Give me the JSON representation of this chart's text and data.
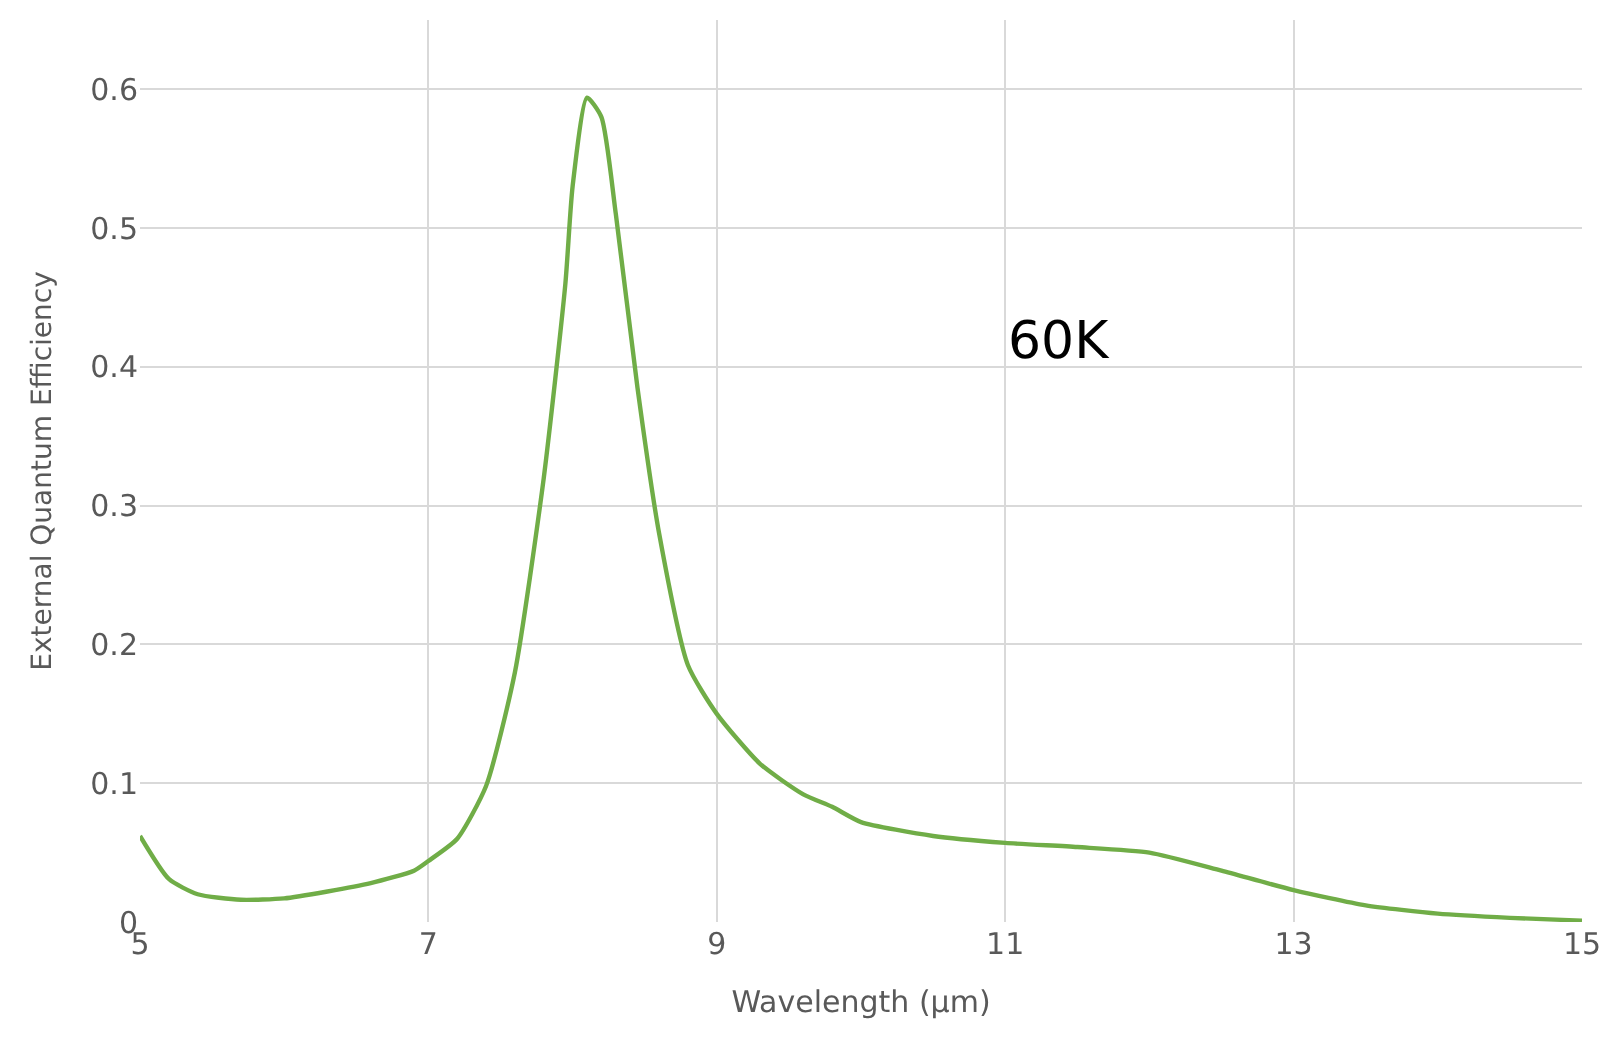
{
  "chart_data": {
    "type": "line",
    "xlabel": "Wavelength (µm)",
    "ylabel": "External Quantum Efficiency",
    "annotations": [
      "60K"
    ],
    "x": [
      5,
      5.2,
      5.4,
      5.7,
      6.0,
      6.3,
      6.6,
      6.9,
      7.0,
      7.2,
      7.4,
      7.6,
      7.8,
      7.95,
      8.0,
      8.1,
      8.2,
      8.3,
      8.45,
      8.6,
      8.8,
      9.0,
      9.3,
      9.6,
      9.8,
      10.0,
      10.5,
      11.0,
      11.5,
      12.0,
      12.5,
      13.0,
      13.5,
      14.0,
      14.5,
      15
    ],
    "series": [
      {
        "color": "#70ad47",
        "values": [
          0.062,
          0.031,
          0.02,
          0.016,
          0.017,
          0.022,
          0.028,
          0.037,
          0.044,
          0.06,
          0.098,
          0.18,
          0.32,
          0.46,
          0.53,
          0.594,
          0.58,
          0.51,
          0.385,
          0.28,
          0.185,
          0.15,
          0.114,
          0.092,
          0.083,
          0.072,
          0.062,
          0.057,
          0.054,
          0.05,
          0.037,
          0.023,
          0.012,
          0.006,
          0.003,
          0.001
        ]
      }
    ],
    "xlim": [
      5,
      15
    ],
    "xticks": [
      5,
      7,
      9,
      11,
      13,
      15
    ],
    "ylim": [
      0,
      0.65
    ],
    "yticks": [
      0,
      0.1,
      0.2,
      0.3,
      0.4,
      0.5,
      0.6
    ],
    "grid": true,
    "marker": "none",
    "line_style": "solid"
  }
}
